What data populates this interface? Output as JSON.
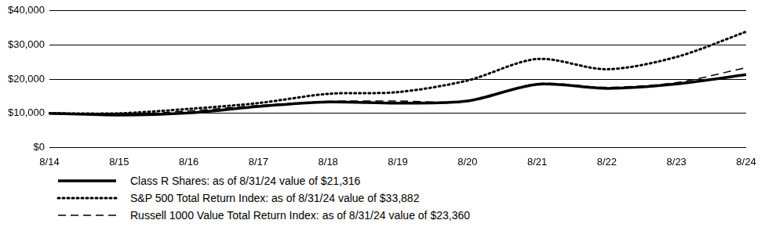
{
  "chart_data": {
    "type": "line",
    "categories": [
      "8/14",
      "8/15",
      "8/16",
      "8/17",
      "8/18",
      "8/19",
      "8/20",
      "8/21",
      "8/22",
      "8/23",
      "8/24"
    ],
    "series": [
      {
        "name": "Class R Shares: as of 8/31/24 value of $21,316",
        "color": "#000000",
        "line_style": "solid",
        "values": [
          10000,
          9500,
          10100,
          12000,
          13300,
          13000,
          13600,
          18500,
          17300,
          18600,
          21316
        ]
      },
      {
        "name": "S&P 500 Total Return Index: as of 8/31/24 value of $33,882",
        "color": "#000000",
        "line_style": "dotted",
        "values": [
          10000,
          10000,
          11300,
          13000,
          15700,
          16200,
          19600,
          25900,
          22900,
          26500,
          33882
        ]
      },
      {
        "name": "Russell 1000 Value Total Return Index: as of 8/31/24 value of $23,360",
        "color": "#000000",
        "line_style": "dashed",
        "values": [
          10000,
          9600,
          10700,
          12300,
          13500,
          13600,
          13600,
          18700,
          17600,
          19000,
          23360
        ]
      }
    ],
    "ylim": [
      0,
      40000
    ],
    "yticks": [
      {
        "value": 0,
        "label": "$0"
      },
      {
        "value": 10000,
        "label": "$10,000"
      },
      {
        "value": 20000,
        "label": "$20,000"
      },
      {
        "value": 30000,
        "label": "$30,000"
      },
      {
        "value": 40000,
        "label": "$40,000"
      }
    ],
    "grid": true,
    "legend": "bottom"
  }
}
